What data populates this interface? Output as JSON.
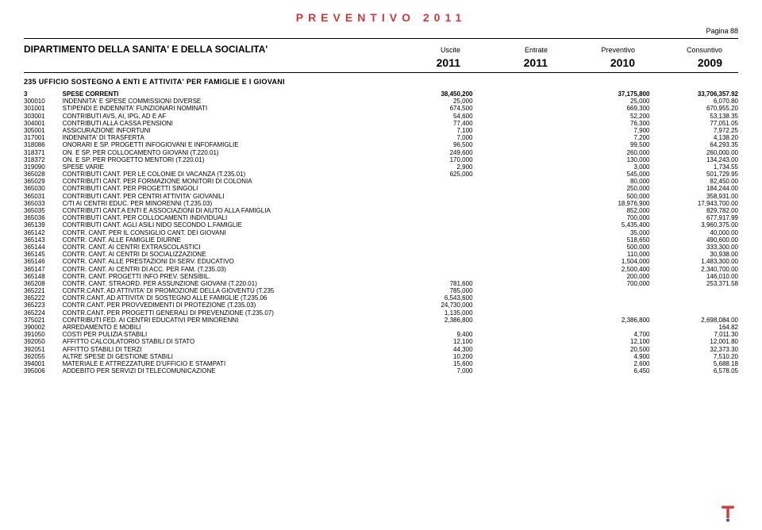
{
  "title": "PREVENTIVO 2011",
  "pagina": "Pagina 88",
  "department": "DIPARTIMENTO DELLA SANITA' E DELLA SOCIALITA'",
  "colHeaders": [
    "Uscite",
    "Entrate",
    "Preventivo",
    "Consuntivo"
  ],
  "years": [
    "2011",
    "2011",
    "2010",
    "2009"
  ],
  "section": "235   UFFICIO SOSTEGNO A ENTI E ATTIVITA' PER FAMIGLIE E I GIOVANI",
  "colors": {
    "title": "#c04040",
    "text": "#000000",
    "bg": "#ffffff",
    "logoRed": "#d23c3c",
    "logoBlue": "#2b4a9b"
  },
  "rows": [
    {
      "code": "3",
      "desc": "SPESE CORRENTI",
      "c1": "38,450,200",
      "c2": "",
      "c3": "37,175,800",
      "c4": "33,706,357.92",
      "bold": true
    },
    {
      "code": "300010",
      "desc": "INDENNITA' E SPESE COMMISSIONI DIVERSE",
      "c1": "25,000",
      "c2": "",
      "c3": "25,000",
      "c4": "6,070.80"
    },
    {
      "code": "301001",
      "desc": "STIPENDI E INDENNITA' FUNZIONARI NOMINATI",
      "c1": "674,500",
      "c2": "",
      "c3": "669,300",
      "c4": "670,955.20"
    },
    {
      "code": "303001",
      "desc": "CONTRIBUTI AVS, AI, IPG, AD E AF",
      "c1": "54,600",
      "c2": "",
      "c3": "52,200",
      "c4": "53,138.35"
    },
    {
      "code": "304001",
      "desc": "CONTRIBUTI ALLA CASSA PENSIONI",
      "c1": "77,400",
      "c2": "",
      "c3": "76,300",
      "c4": "77,051.05"
    },
    {
      "code": "305001",
      "desc": "ASSICURAZIONE INFORTUNI",
      "c1": "7,100",
      "c2": "",
      "c3": "7,900",
      "c4": "7,972.25"
    },
    {
      "code": "317001",
      "desc": "INDENNITA' DI TRASFERTA",
      "c1": "7,000",
      "c2": "",
      "c3": "7,200",
      "c4": "4,138.20"
    },
    {
      "code": "318086",
      "desc": "ONORARI E SP. PROGETTI INFOGIOVANI E INFOFAMIGLIE",
      "c1": "96,500",
      "c2": "",
      "c3": "99,500",
      "c4": "64,293.35"
    },
    {
      "code": "318371",
      "desc": "ON. E SP. PER COLLOCAMENTO GIOVANI (T.220.01)",
      "c1": "249,600",
      "c2": "",
      "c3": "260,000",
      "c4": "260,000.00"
    },
    {
      "code": "318372",
      "desc": "ON. E SP. PER PROGETTO MENTORI (T.220.01)",
      "c1": "170,000",
      "c2": "",
      "c3": "130,000",
      "c4": "134,243.00"
    },
    {
      "code": "319090",
      "desc": "SPESE VARIE",
      "c1": "2,900",
      "c2": "",
      "c3": "3,000",
      "c4": "1,734.55"
    },
    {
      "code": "365028",
      "desc": "CONTRIBUTI CANT. PER LE COLONIE DI VACANZA (T.235.01)",
      "c1": "625,000",
      "c2": "",
      "c3": "545,000",
      "c4": "501,729.95"
    },
    {
      "code": "365029",
      "desc": "CONTRIBUTI CANT. PER FORMAZIONE MONITORI DI COLONIA",
      "c1": "",
      "c2": "",
      "c3": "80,000",
      "c4": "82,450.00"
    },
    {
      "code": "365030",
      "desc": "CONTRIBUTI CANT. PER PROGETTI SINGOLI",
      "c1": "",
      "c2": "",
      "c3": "250,000",
      "c4": "184,244.00"
    },
    {
      "code": "365031",
      "desc": "CONTRIBUTI CANT. PER CENTRI ATTIVITA' GIOVANILI",
      "c1": "",
      "c2": "",
      "c3": "500,000",
      "c4": "358,931.00"
    },
    {
      "code": "365033",
      "desc": "C/TI AI CENTRI EDUC. PER MINORENNI (T.235.03)",
      "c1": "",
      "c2": "",
      "c3": "18,976,900",
      "c4": "17,943,700.00"
    },
    {
      "code": "365035",
      "desc": "CONTRIBUTI CANT.A ENTI E ASSOCIAZIONI DI AIUTO ALLA FAMIGLIA",
      "c1": "",
      "c2": "",
      "c3": "852,000",
      "c4": "829,782.00"
    },
    {
      "code": "365036",
      "desc": "CONTRIBUTI CANT. PER COLLOCAMENTI INDIVIDUALI",
      "c1": "",
      "c2": "",
      "c3": "700,000",
      "c4": "677,917.99"
    },
    {
      "code": "365139",
      "desc": "CONTRIBUTI CANT. AGLI ASILI NIDO SECONDO L.FAMIGLIE",
      "c1": "",
      "c2": "",
      "c3": "5,435,400",
      "c4": "3,960,375.00"
    },
    {
      "code": "365142",
      "desc": "CONTR. CANT. PER IL CONSIGLIO CANT. DEI GIOVANI",
      "c1": "",
      "c2": "",
      "c3": "35,000",
      "c4": "40,000.00"
    },
    {
      "code": "365143",
      "desc": "CONTR. CANT.   ALLE FAMIGLIE DIURNE",
      "c1": "",
      "c2": "",
      "c3": "518,650",
      "c4": "490,600.00"
    },
    {
      "code": "365144",
      "desc": "CONTR. CANT.   AI CENTRI EXTRASCOLASTICI",
      "c1": "",
      "c2": "",
      "c3": "500,000",
      "c4": "333,300.00"
    },
    {
      "code": "365145",
      "desc": "CONTR. CANT.   AI CENTRI DI SOCIALIZZAZIONE",
      "c1": "",
      "c2": "",
      "c3": "110,000",
      "c4": "30,938.00"
    },
    {
      "code": "365146",
      "desc": "CONTR. CANT.   ALLE PRESTAZIONI DI SERV. EDUCATIVO",
      "c1": "",
      "c2": "",
      "c3": "1,504,000",
      "c4": "1,483,300.00"
    },
    {
      "code": "365147",
      "desc": "CONTR. CANT.   AI CENTRI DI ACC. PER FAM. (T.235.03)",
      "c1": "",
      "c2": "",
      "c3": "2,500,400",
      "c4": "2,340,700.00"
    },
    {
      "code": "365148",
      "desc": "CONTR. CANT.   PROGETTI INFO PREV. SENSIBIL.",
      "c1": "",
      "c2": "",
      "c3": "200,000",
      "c4": "146,010.00"
    },
    {
      "code": "365208",
      "desc": "CONTR. CANT. STRAORD. PER ASSUNZIONE GIOVANI (T.220.01)",
      "c1": "781,600",
      "c2": "",
      "c3": "700,000",
      "c4": "253,371.58"
    },
    {
      "code": "365221",
      "desc": "CONTR.CANT. AD ATTIVITA' DI PROMOZIONE DELLA GIOVENTÙ (T.235",
      "c1": "785,000",
      "c2": "",
      "c3": "",
      "c4": ""
    },
    {
      "code": "365222",
      "desc": "CONTR.CANT. AD ATTIVITA' DI SOSTEGNO ALLE FAMIGLIE (T.235.06",
      "c1": "6,543,600",
      "c2": "",
      "c3": "",
      "c4": ""
    },
    {
      "code": "365223",
      "desc": "CONTR.CANT. PER PROVVEDIMENTI DI PROTEZIONE (T.235.03)",
      "c1": "24,730,000",
      "c2": "",
      "c3": "",
      "c4": ""
    },
    {
      "code": "365224",
      "desc": "CONTR.CANT. PER PROGETTI GENERALI DI PREVENZIONE (T.235.07)",
      "c1": "1,135,000",
      "c2": "",
      "c3": "",
      "c4": ""
    },
    {
      "code": "375021",
      "desc": "CONTRIBUTI FED. AI CENTRI EDUCATIVI PER MINORENNI",
      "c1": "2,386,800",
      "c2": "",
      "c3": "2,386,800",
      "c4": "2,698,084.00"
    },
    {
      "code": "390002",
      "desc": "ARREDAMENTO E MOBILI",
      "c1": "",
      "c2": "",
      "c3": "",
      "c4": "164.82"
    },
    {
      "code": "391050",
      "desc": "COSTI PER PULIZIA STABILI",
      "c1": "9,400",
      "c2": "",
      "c3": "4,700",
      "c4": "7,011.30"
    },
    {
      "code": "392050",
      "desc": "AFFITTO CALCOLATORIO STABILI DI STATO",
      "c1": "12,100",
      "c2": "",
      "c3": "12,100",
      "c4": "12,001.80"
    },
    {
      "code": "392051",
      "desc": "AFFITTO STABILI DI TERZI",
      "c1": "44,300",
      "c2": "",
      "c3": "20,500",
      "c4": "32,373.30"
    },
    {
      "code": "392055",
      "desc": "ALTRE SPESE DI GESTIONE STABILI",
      "c1": "10,200",
      "c2": "",
      "c3": "4,900",
      "c4": "7,510.20"
    },
    {
      "code": "394001",
      "desc": "MATERIALE E ATTREZZATURE D'UFFICIO E STAMPATI",
      "c1": "15,600",
      "c2": "",
      "c3": "2,600",
      "c4": "5,688.18"
    },
    {
      "code": "395006",
      "desc": "ADDEBITO PER SERVIZI DI TELECOMUNICAZIONE",
      "c1": "7,000",
      "c2": "",
      "c3": "6,450",
      "c4": "6,578.05"
    }
  ]
}
